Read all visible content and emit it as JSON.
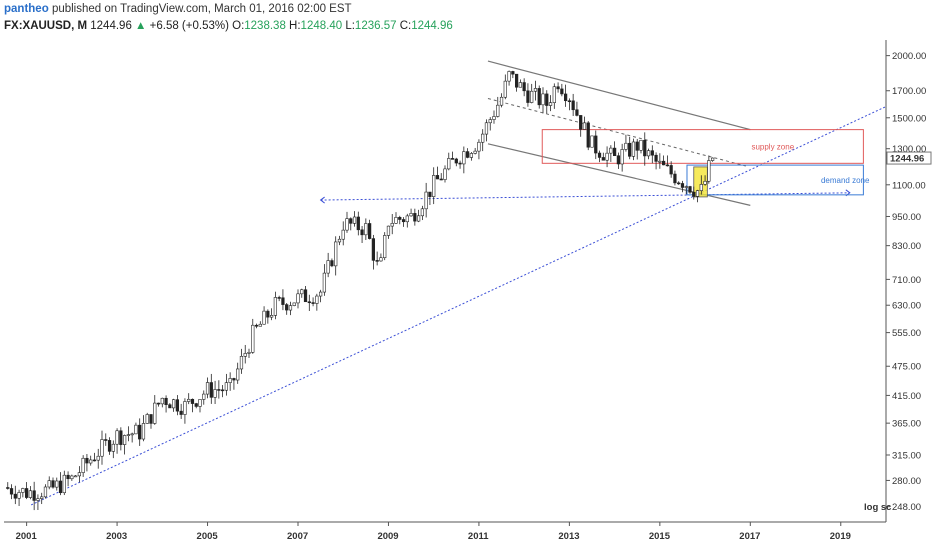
{
  "header": {
    "author": "pantheo",
    "published": "published on TradingView.com, March 01, 2016 02:00 EST",
    "symbol": "FX:XAUUSD, M",
    "price": "1244.96",
    "change_arrow": "▲",
    "change": "+6.58 (+0.53%)",
    "o_label": "O:",
    "o_value": "1238.38",
    "h_label": "H:",
    "h_value": "1248.40",
    "l_label": "L:",
    "l_value": "1236.57",
    "c_label": "C:",
    "c_value": "1244.96"
  },
  "colors": {
    "up_candle": "#ffffff",
    "down_candle": "#222222",
    "trend_blue": "#3b4fd6",
    "channel_gray": "#777777",
    "supply": "#e05a5a",
    "demand": "#3a7bd5",
    "highlight": "#f4e533"
  },
  "chart_data": {
    "type": "candlestick",
    "symbol": "FX:XAUUSD",
    "interval": "M",
    "y_scale": "log",
    "y_scale_label": "log sc",
    "ylim": [
      231,
      2150
    ],
    "xlim": [
      2000.5,
      2020.0
    ],
    "y_ticks": [
      "2000.00",
      "1700.00",
      "1500.00",
      "1300.00",
      "1100.00",
      "950.00",
      "830.00",
      "710.00",
      "630.00",
      "555.00",
      "475.00",
      "415.00",
      "365.00",
      "315.00",
      "280.00",
      "248.00"
    ],
    "x_ticks": [
      "2001",
      "2003",
      "2005",
      "2007",
      "2009",
      "2011",
      "2013",
      "2015",
      "2017",
      "2019"
    ],
    "last_price_label": "1244.96",
    "zones": [
      {
        "name": "supply zone",
        "from_year": 2012.4,
        "to_year": 2019.5,
        "low": 1215,
        "high": 1420
      },
      {
        "name": "demand zone",
        "from_year": 2015.6,
        "to_year": 2019.5,
        "low": 1050,
        "high": 1205
      }
    ],
    "monthly_close": [
      {
        "year": 2000.5,
        "close": 271
      },
      {
        "year": 2001.0,
        "close": 265
      },
      {
        "year": 2001.5,
        "close": 268
      },
      {
        "year": 2002.0,
        "close": 282
      },
      {
        "year": 2002.5,
        "close": 315
      },
      {
        "year": 2003.0,
        "close": 345
      },
      {
        "year": 2003.5,
        "close": 350
      },
      {
        "year": 2004.0,
        "close": 410
      },
      {
        "year": 2004.5,
        "close": 395
      },
      {
        "year": 2005.0,
        "close": 425
      },
      {
        "year": 2005.5,
        "close": 430
      },
      {
        "year": 2006.0,
        "close": 550
      },
      {
        "year": 2006.5,
        "close": 630
      },
      {
        "year": 2007.0,
        "close": 650
      },
      {
        "year": 2007.5,
        "close": 670
      },
      {
        "year": 2008.0,
        "close": 920
      },
      {
        "year": 2008.5,
        "close": 900
      },
      {
        "year": 2008.8,
        "close": 730
      },
      {
        "year": 2009.0,
        "close": 930
      },
      {
        "year": 2009.5,
        "close": 950
      },
      {
        "year": 2010.0,
        "close": 1100
      },
      {
        "year": 2010.5,
        "close": 1245
      },
      {
        "year": 2011.0,
        "close": 1350
      },
      {
        "year": 2011.5,
        "close": 1650
      },
      {
        "year": 2011.67,
        "close": 1825
      },
      {
        "year": 2012.0,
        "close": 1700
      },
      {
        "year": 2012.5,
        "close": 1600
      },
      {
        "year": 2012.75,
        "close": 1780
      },
      {
        "year": 2013.0,
        "close": 1660
      },
      {
        "year": 2013.25,
        "close": 1470
      },
      {
        "year": 2013.5,
        "close": 1320
      },
      {
        "year": 2014.0,
        "close": 1240
      },
      {
        "year": 2014.5,
        "close": 1320
      },
      {
        "year": 2015.0,
        "close": 1200
      },
      {
        "year": 2015.5,
        "close": 1120
      },
      {
        "year": 2015.9,
        "close": 1060
      },
      {
        "year": 2016.0,
        "close": 1118
      },
      {
        "year": 2016.15,
        "close": 1245
      }
    ]
  }
}
